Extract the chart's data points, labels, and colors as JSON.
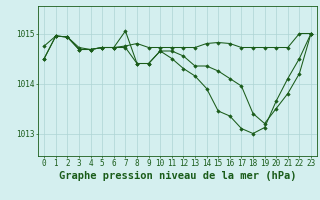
{
  "title": "Graphe pression niveau de la mer (hPa)",
  "bg_color": "#d4efef",
  "grid_color": "#aed4d4",
  "line_color": "#1a5c1a",
  "marker_color": "#1a5c1a",
  "xlim": [
    -0.5,
    23.5
  ],
  "ylim": [
    1012.55,
    1015.55
  ],
  "yticks": [
    1013,
    1014,
    1015
  ],
  "xticks": [
    0,
    1,
    2,
    3,
    4,
    5,
    6,
    7,
    8,
    9,
    10,
    11,
    12,
    13,
    14,
    15,
    16,
    17,
    18,
    19,
    20,
    21,
    22,
    23
  ],
  "series": [
    {
      "x": [
        0,
        1,
        2,
        3,
        4,
        5,
        6,
        7,
        8,
        9,
        10,
        11,
        12,
        13,
        14,
        15,
        16,
        17,
        18,
        19,
        20,
        21,
        22,
        23
      ],
      "y": [
        1014.75,
        1014.95,
        1014.93,
        1014.72,
        1014.68,
        1014.72,
        1014.72,
        1014.75,
        1014.8,
        1014.72,
        1014.72,
        1014.72,
        1014.72,
        1014.72,
        1014.8,
        1014.82,
        1014.8,
        1014.72,
        1014.72,
        1014.72,
        1014.72,
        1014.72,
        1015.0,
        1015.0
      ]
    },
    {
      "x": [
        0,
        1,
        2,
        3,
        4,
        5,
        6,
        7,
        8,
        9,
        10,
        11,
        12,
        13,
        14,
        15,
        16,
        17,
        18,
        19,
        20,
        21,
        22,
        23
      ],
      "y": [
        1014.5,
        1014.95,
        1014.93,
        1014.68,
        1014.68,
        1014.72,
        1014.72,
        1015.05,
        1014.4,
        1014.4,
        1014.65,
        1014.65,
        1014.55,
        1014.35,
        1014.35,
        1014.25,
        1014.1,
        1013.95,
        1013.4,
        1013.2,
        1013.5,
        1013.8,
        1014.2,
        1015.0
      ]
    },
    {
      "x": [
        0,
        1,
        2,
        3,
        4,
        5,
        6,
        7,
        8,
        9,
        10,
        11,
        12,
        13,
        14,
        15,
        16,
        17,
        18,
        19,
        20,
        21,
        22,
        23
      ],
      "y": [
        1014.5,
        1014.95,
        1014.93,
        1014.68,
        1014.68,
        1014.72,
        1014.72,
        1014.72,
        1014.4,
        1014.4,
        1014.65,
        1014.5,
        1014.3,
        1014.15,
        1013.9,
        1013.45,
        1013.35,
        1013.1,
        1013.0,
        1013.12,
        1013.65,
        1014.1,
        1014.5,
        1015.0
      ]
    }
  ],
  "title_fontsize": 7.5,
  "tick_fontsize": 5.5
}
